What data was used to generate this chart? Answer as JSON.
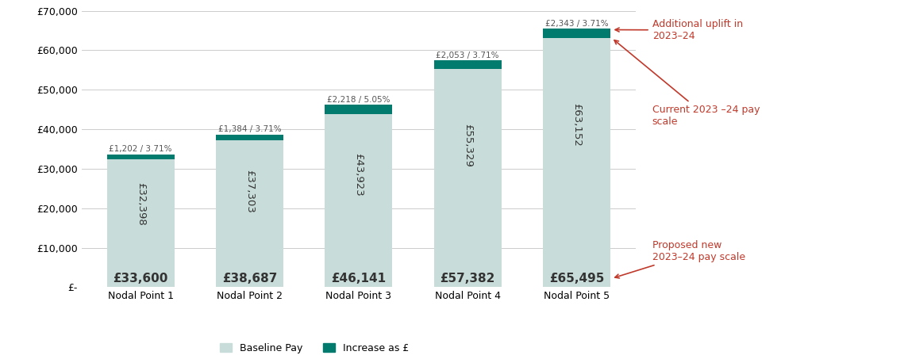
{
  "categories": [
    "Nodal Point 1",
    "Nodal Point 2",
    "Nodal Point 3",
    "Nodal Point 4",
    "Nodal Point 5"
  ],
  "baseline_pay": [
    32398,
    37303,
    43923,
    55329,
    63152
  ],
  "increase_values": [
    1202,
    1384,
    2218,
    2053,
    2343
  ],
  "increase_pct": [
    "3.71%",
    "3.71%",
    "5.05%",
    "3.71%",
    "3.71%"
  ],
  "proposed_total": [
    33600,
    38687,
    46141,
    57382,
    65495
  ],
  "bar_color_baseline": "#c8ddd9",
  "bar_color_increase": "#007b6e",
  "ylim": [
    0,
    70000
  ],
  "ytick_step": 10000,
  "annotation_color": "#c0392b",
  "legend_baseline": "Baseline Pay",
  "legend_increase": "Increase as £",
  "annotation_right_1": "Additional uplift in\n2023–24",
  "annotation_right_2": "Current 2023 –24 pay\nscale",
  "annotation_right_3": "Proposed new\n2023–24 pay scale",
  "background_color": "#ffffff",
  "bar_width": 0.62,
  "tick_fontsize": 9
}
